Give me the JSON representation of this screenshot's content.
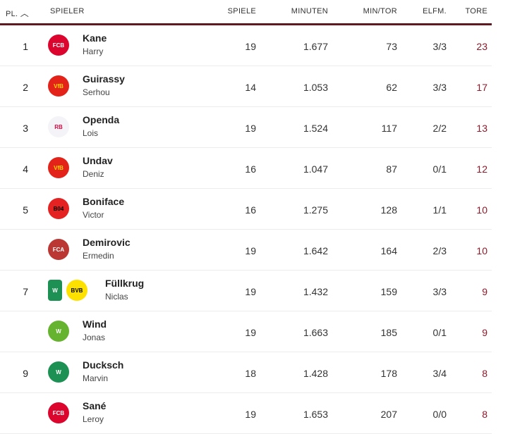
{
  "header": {
    "rank": "PL.",
    "sort_icon": "chevron-up-icon",
    "player": "SPIELER",
    "games": "SPIELE",
    "minutes": "MINUTEN",
    "min_per_goal": "MIN/TOR",
    "penalties": "ELFM.",
    "goals": "TORE"
  },
  "colors": {
    "accent": "#5e1a20",
    "goals": "#8b1a2b"
  },
  "rows": [
    {
      "rank": "1",
      "last": "Kane",
      "first": "Harry",
      "clubs": [
        {
          "abbr": "FCB",
          "bg": "#dc052d",
          "fg": "#fff"
        }
      ],
      "games": "19",
      "minutes": "1.677",
      "min_per_goal": "73",
      "penalties": "3/3",
      "goals": "23"
    },
    {
      "rank": "2",
      "last": "Guirassy",
      "first": "Serhou",
      "clubs": [
        {
          "abbr": "VfB",
          "bg": "#e32219",
          "fg": "#ffd800"
        }
      ],
      "games": "14",
      "minutes": "1.053",
      "min_per_goal": "62",
      "penalties": "3/3",
      "goals": "17"
    },
    {
      "rank": "3",
      "last": "Openda",
      "first": "Lois",
      "clubs": [
        {
          "abbr": "RB",
          "bg": "#f3f3f8",
          "fg": "#dd0741"
        }
      ],
      "games": "19",
      "minutes": "1.524",
      "min_per_goal": "117",
      "penalties": "2/2",
      "goals": "13"
    },
    {
      "rank": "4",
      "last": "Undav",
      "first": "Deniz",
      "clubs": [
        {
          "abbr": "VfB",
          "bg": "#e32219",
          "fg": "#ffd800"
        }
      ],
      "games": "16",
      "minutes": "1.047",
      "min_per_goal": "87",
      "penalties": "0/1",
      "goals": "12"
    },
    {
      "rank": "5",
      "last": "Boniface",
      "first": "Victor",
      "clubs": [
        {
          "abbr": "B04",
          "bg": "#e32221",
          "fg": "#000"
        }
      ],
      "games": "16",
      "minutes": "1.275",
      "min_per_goal": "128",
      "penalties": "1/1",
      "goals": "10"
    },
    {
      "rank": "",
      "last": "Demirovic",
      "first": "Ermedin",
      "clubs": [
        {
          "abbr": "FCA",
          "bg": "#ba3733",
          "fg": "#fff"
        }
      ],
      "games": "19",
      "minutes": "1.642",
      "min_per_goal": "164",
      "penalties": "2/3",
      "goals": "10"
    },
    {
      "rank": "7",
      "last": "Füllkrug",
      "first": "Niclas",
      "clubs": [
        {
          "abbr": "W",
          "bg": "#1d9053",
          "fg": "#fff"
        },
        {
          "abbr": "BVB",
          "bg": "#fde100",
          "fg": "#000"
        }
      ],
      "games": "19",
      "minutes": "1.432",
      "min_per_goal": "159",
      "penalties": "3/3",
      "goals": "9"
    },
    {
      "rank": "",
      "last": "Wind",
      "first": "Jonas",
      "clubs": [
        {
          "abbr": "W",
          "bg": "#65b32e",
          "fg": "#fff"
        }
      ],
      "games": "19",
      "minutes": "1.663",
      "min_per_goal": "185",
      "penalties": "0/1",
      "goals": "9"
    },
    {
      "rank": "9",
      "last": "Ducksch",
      "first": "Marvin",
      "clubs": [
        {
          "abbr": "W",
          "bg": "#1d9053",
          "fg": "#fff"
        }
      ],
      "games": "18",
      "minutes": "1.428",
      "min_per_goal": "178",
      "penalties": "3/4",
      "goals": "8"
    },
    {
      "rank": "",
      "last": "Sané",
      "first": "Leroy",
      "clubs": [
        {
          "abbr": "FCB",
          "bg": "#dc052d",
          "fg": "#fff"
        }
      ],
      "games": "19",
      "minutes": "1.653",
      "min_per_goal": "207",
      "penalties": "0/0",
      "goals": "8"
    }
  ]
}
